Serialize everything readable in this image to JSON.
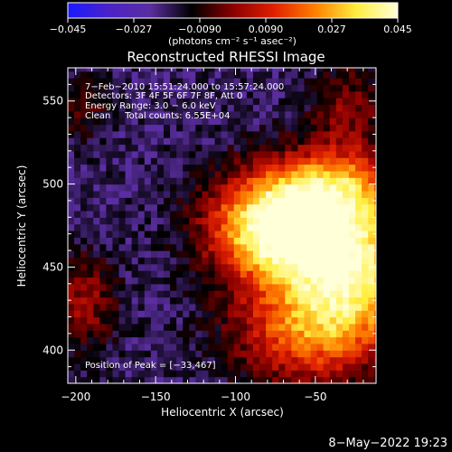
{
  "chart_data": {
    "type": "heatmap",
    "title": "Reconstructed RHESSI Image",
    "xlabel": "Heliocentric X (arcsec)",
    "ylabel": "Heliocentric Y (arcsec)",
    "xlim": [
      -205,
      -12
    ],
    "ylim": [
      380,
      570
    ],
    "x_ticks": [
      -200,
      -150,
      -100,
      -50
    ],
    "y_ticks": [
      400,
      450,
      500,
      550
    ],
    "x_tick_labels": [
      "−200",
      "−150",
      "−100",
      "−50"
    ],
    "y_tick_labels": [
      "400",
      "450",
      "500",
      "550"
    ],
    "colorbar": {
      "range": [
        -0.045,
        0.045
      ],
      "ticks": [
        -0.045,
        -0.027,
        -0.009,
        0.009,
        0.027,
        0.045
      ],
      "tick_labels": [
        "−0.045",
        "−0.027",
        "−0.0090",
        "0.0090",
        "0.027",
        "0.045"
      ],
      "units_label": "(photons cm⁻² s⁻¹ asec⁻²)",
      "colors": [
        "#1a1aff",
        "#4b22c8",
        "#5a2ea0",
        "#000000",
        "#8b0000",
        "#e02000",
        "#ff8000",
        "#ffee40",
        "#ffffd8"
      ]
    },
    "annotations": [
      "7−Feb−2010 15:51:24.000 to 15:57:24.000",
      "Detectors: 3F 4F 5F 6F 7F 8F, Att 0",
      "Energy Range: 3.0 − 6.0 keV",
      "Clean     Total counts: 6.55E+04",
      "Position of Peak = [−33,467]"
    ],
    "peak": {
      "x": -33,
      "y": 467
    },
    "emission_regions": [
      {
        "x": -45,
        "y": 470,
        "sx": 38,
        "sy": 28,
        "amp": 0.048
      },
      {
        "x": -80,
        "y": 475,
        "sx": 26,
        "sy": 20,
        "amp": 0.04
      },
      {
        "x": -25,
        "y": 435,
        "sx": 26,
        "sy": 28,
        "amp": 0.032
      },
      {
        "x": -60,
        "y": 410,
        "sx": 30,
        "sy": 22,
        "amp": 0.03
      },
      {
        "x": -40,
        "y": 500,
        "sx": 28,
        "sy": 14,
        "amp": 0.025
      },
      {
        "x": -30,
        "y": 545,
        "sx": 16,
        "sy": 20,
        "amp": 0.016
      },
      {
        "x": -195,
        "y": 430,
        "sx": 14,
        "sy": 20,
        "amp": 0.02
      },
      {
        "x": -195,
        "y": 545,
        "sx": 12,
        "sy": 14,
        "amp": 0.012
      }
    ],
    "base_level": -0.018
  },
  "footer": {
    "timestamp": "8−May−2022 19:23"
  }
}
